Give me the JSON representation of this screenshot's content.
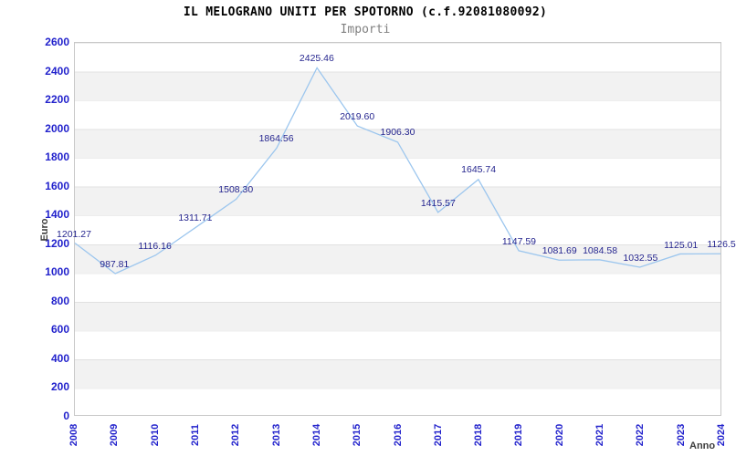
{
  "colors": {
    "line": "#9cc6ee",
    "point_label": "#26268f",
    "tick_label": "#2222cc",
    "band_gray": "#f2f2f2",
    "plot_border": "#c8c8c8",
    "title": "#000000",
    "subtitle": "#808080",
    "axis_title": "#3c3c3c"
  },
  "chart_data": {
    "type": "line",
    "title": "IL MELOGRANO UNITI PER SPOTORNO (c.f.92081080092)",
    "subtitle": "Importi",
    "xlabel": "Anno",
    "ylabel": "Euro",
    "x": [
      2008,
      2009,
      2010,
      2011,
      2012,
      2013,
      2014,
      2015,
      2016,
      2017,
      2018,
      2019,
      2020,
      2021,
      2022,
      2023,
      2024
    ],
    "series": [
      {
        "name": "Importi",
        "values": [
          1201.27,
          987.81,
          1116.16,
          1311.71,
          1508.3,
          1864.56,
          2425.46,
          2019.6,
          1906.3,
          1415.57,
          1645.74,
          1147.59,
          1081.69,
          1084.58,
          1032.55,
          1125.01,
          1126.5
        ]
      }
    ],
    "point_labels": [
      "1201.27",
      "987.81",
      "1116.16",
      "1311.71",
      "1508.30",
      "1864.56",
      "2425.46",
      "2019.60",
      "1906.30",
      "1415.57",
      "1645.74",
      "1147.59",
      "1081.69",
      "1084.58",
      "1032.55",
      "1125.01",
      "1126.5"
    ],
    "ylim": [
      0,
      2600
    ],
    "ytick_step": 200,
    "grid": "horizontal-bands-alternating",
    "legend": "none"
  }
}
